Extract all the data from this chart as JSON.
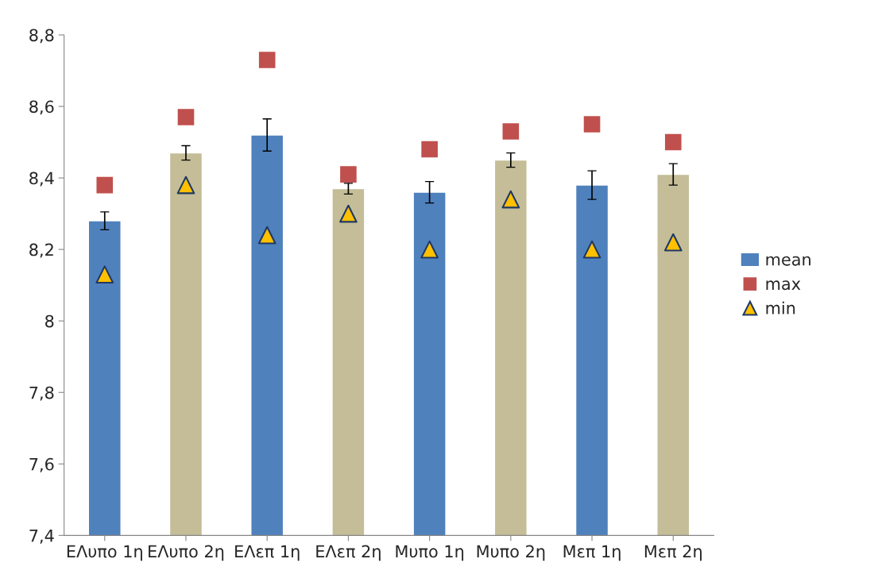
{
  "chart_data": {
    "type": "bar",
    "categories": [
      "ΕΛυπο 1η",
      "ΕΛυπο 2η",
      "ΕΛεπ 1η",
      "ΕΛεπ 2η",
      "Μυπο 1η",
      "Μυπο 2η",
      "Μεπ 1η",
      "Μεπ 2η"
    ],
    "series": [
      {
        "name": "mean",
        "color": "#4f81bd",
        "colors": [
          "#4f81bd",
          "#c4bd97",
          "#4f81bd",
          "#c4bd97",
          "#4f81bd",
          "#c4bd97",
          "#4f81bd",
          "#c4bd97"
        ],
        "values": [
          8.28,
          8.47,
          8.52,
          8.37,
          8.36,
          8.45,
          8.38,
          8.41
        ],
        "errors": [
          0.025,
          0.02,
          0.045,
          0.015,
          0.03,
          0.02,
          0.04,
          0.03
        ]
      },
      {
        "name": "max",
        "type": "scatter",
        "marker": "square",
        "color": "#c0504d",
        "values": [
          8.38,
          8.57,
          8.73,
          8.41,
          8.48,
          8.53,
          8.55,
          8.5
        ]
      },
      {
        "name": "min",
        "type": "scatter",
        "marker": "triangle",
        "color": "#ffc000",
        "values": [
          8.13,
          8.38,
          8.24,
          8.3,
          8.2,
          8.34,
          8.2,
          8.22
        ]
      }
    ],
    "ylim": [
      7.4,
      8.8
    ],
    "yticks": [
      {
        "value": 7.4,
        "label": "7,4"
      },
      {
        "value": 7.6,
        "label": "7,6"
      },
      {
        "value": 7.8,
        "label": "7,8"
      },
      8,
      {
        "value": 8.2,
        "label": "8,2"
      },
      {
        "value": 8.4,
        "label": "8,4"
      },
      {
        "value": 8.6,
        "label": "8,6"
      },
      {
        "value": 8.8,
        "label": "8,8"
      }
    ],
    "grid": false,
    "legend": "right"
  }
}
